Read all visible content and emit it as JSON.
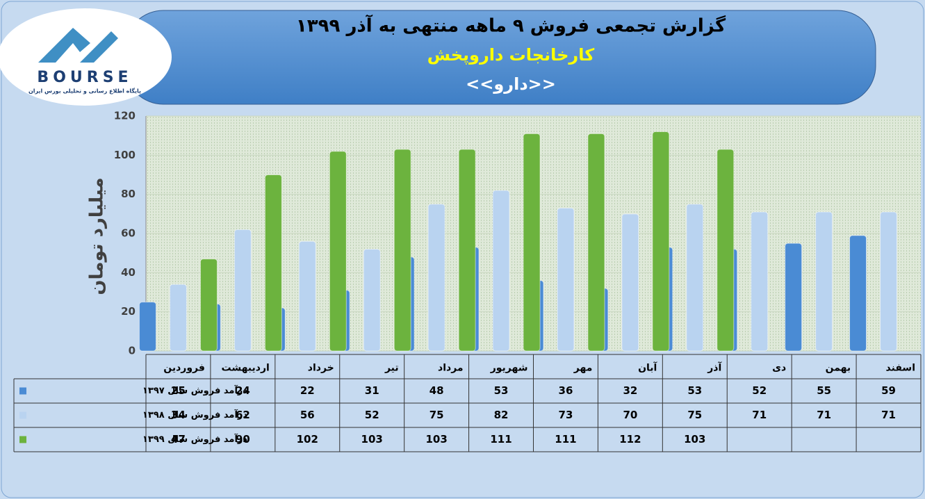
{
  "logo": {
    "name": "BOURSE",
    "tagline": "پایگاه اطلاع رسانی و تحلیلی بورس ایران"
  },
  "chart_data": {
    "type": "bar",
    "title": "گزارش تجمعی فروش ۹ ماهه منتهی به آذر ۱۳۹۹",
    "subtitle": "کارخانجات داروپخش",
    "symbol": "<<دارو>>",
    "y_label": "میلیارد تومان",
    "categories": [
      "فروردین",
      "اردیبهشت",
      "خرداد",
      "تیر",
      "مرداد",
      "شهریور",
      "مهر",
      "آبان",
      "آذر",
      "دی",
      "بهمن",
      "اسفند"
    ],
    "series": [
      {
        "name": "درآمد فروش سال ۱۳۹۷",
        "color": "#4a8bd4",
        "values": [
          25,
          24,
          22,
          31,
          48,
          53,
          36,
          32,
          53,
          52,
          55,
          59
        ]
      },
      {
        "name": "درآمد فروش سال ۱۳۹۸",
        "color": "#b9d3f0",
        "values": [
          34,
          62,
          56,
          52,
          75,
          82,
          73,
          70,
          75,
          71,
          71,
          71
        ]
      },
      {
        "name": "درآمد فروش سال ۱۳۹۹",
        "color": "#6cb33e",
        "values": [
          47,
          90,
          102,
          103,
          103,
          111,
          111,
          112,
          103,
          null,
          null,
          null
        ]
      }
    ],
    "ylim": [
      0,
      120
    ],
    "yticks": [
      0,
      20,
      40,
      60,
      80,
      100,
      120
    ],
    "grid": true
  }
}
